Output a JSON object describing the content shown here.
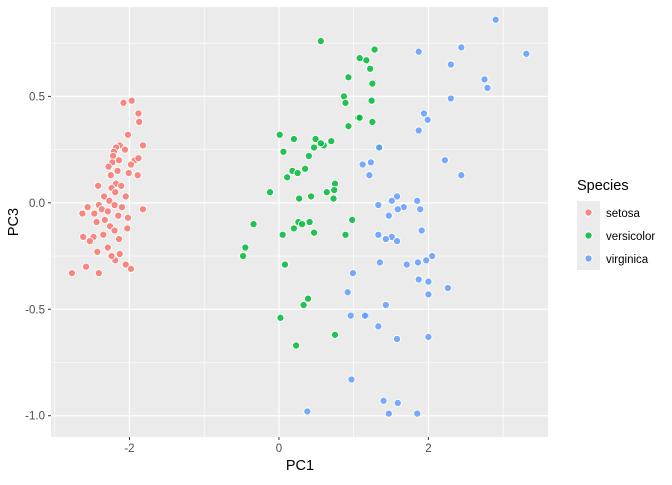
{
  "chart_data": {
    "type": "scatter",
    "title": "",
    "xlabel": "PC1",
    "ylabel": "PC3",
    "xlim": [
      -3.05,
      3.6
    ],
    "ylim": [
      -1.1,
      0.92
    ],
    "x_ticks": [
      -2,
      0,
      2
    ],
    "x_tick_labels": [
      "-2",
      "0",
      "2"
    ],
    "y_ticks": [
      -1.0,
      -0.5,
      0.0,
      0.5
    ],
    "y_tick_labels": [
      "-1.0",
      "-0.5",
      "0.0",
      "0.5"
    ],
    "grid": true,
    "legend": {
      "title": "Species",
      "position": "right"
    },
    "series": [
      {
        "name": "setosa",
        "color": "#F8766D",
        "points": [
          [
            -2.08,
            0.47
          ],
          [
            -1.97,
            0.48
          ],
          [
            -1.88,
            0.42
          ],
          [
            -1.87,
            0.38
          ],
          [
            -2.02,
            0.32
          ],
          [
            -1.82,
            0.27
          ],
          [
            -2.13,
            0.27
          ],
          [
            -2.18,
            0.26
          ],
          [
            -2.06,
            0.25
          ],
          [
            -2.21,
            0.24
          ],
          [
            -1.93,
            0.2
          ],
          [
            -2.22,
            0.22
          ],
          [
            -2.14,
            0.2
          ],
          [
            -1.88,
            0.21
          ],
          [
            -2.23,
            0.19
          ],
          [
            -1.98,
            0.18
          ],
          [
            -2.28,
            0.17
          ],
          [
            -2.16,
            0.15
          ],
          [
            -2.01,
            0.14
          ],
          [
            -2.25,
            0.13
          ],
          [
            -1.89,
            0.13
          ],
          [
            -2.18,
            0.09
          ],
          [
            -2.11,
            0.08
          ],
          [
            -2.24,
            0.07
          ],
          [
            -2.42,
            0.08
          ],
          [
            -2.19,
            0.05
          ],
          [
            -2.05,
            0.03
          ],
          [
            -2.34,
            0.03
          ],
          [
            -2.27,
            0.01
          ],
          [
            -2.41,
            -0.01
          ],
          [
            -2.2,
            -0.01
          ],
          [
            -2.56,
            -0.02
          ],
          [
            -2.1,
            -0.02
          ],
          [
            -1.82,
            -0.03
          ],
          [
            -2.37,
            -0.03
          ],
          [
            -2.29,
            -0.04
          ],
          [
            -2.63,
            -0.05
          ],
          [
            -2.47,
            -0.05
          ],
          [
            -2.15,
            -0.06
          ],
          [
            -2.02,
            -0.07
          ],
          [
            -2.33,
            -0.08
          ],
          [
            -2.44,
            -0.09
          ],
          [
            -2.26,
            -0.11
          ],
          [
            -2.03,
            -0.12
          ],
          [
            -2.2,
            -0.13
          ],
          [
            -2.35,
            -0.15
          ],
          [
            -2.48,
            -0.16
          ],
          [
            -2.62,
            -0.16
          ],
          [
            -2.14,
            -0.17
          ],
          [
            -2.53,
            -0.18
          ],
          [
            -2.29,
            -0.21
          ],
          [
            -2.43,
            -0.23
          ],
          [
            -2.13,
            -0.24
          ],
          [
            -2.19,
            -0.27
          ],
          [
            -2.05,
            -0.29
          ],
          [
            -2.58,
            -0.3
          ],
          [
            -1.98,
            -0.31
          ],
          [
            -2.77,
            -0.33
          ],
          [
            -2.41,
            -0.33
          ],
          [
            -2.24,
            -0.25
          ]
        ]
      },
      {
        "name": "versicolor",
        "color": "#00BA38",
        "points": [
          [
            0.56,
            0.76
          ],
          [
            1.28,
            0.72
          ],
          [
            1.08,
            0.68
          ],
          [
            1.17,
            0.67
          ],
          [
            1.22,
            0.63
          ],
          [
            0.93,
            0.59
          ],
          [
            1.25,
            0.56
          ],
          [
            0.87,
            0.5
          ],
          [
            0.89,
            0.47
          ],
          [
            1.24,
            0.48
          ],
          [
            1.06,
            0.4
          ],
          [
            1.08,
            0.4
          ],
          [
            1.25,
            0.38
          ],
          [
            0.93,
            0.36
          ],
          [
            0.01,
            0.32
          ],
          [
            0.2,
            0.3
          ],
          [
            0.49,
            0.3
          ],
          [
            0.7,
            0.29
          ],
          [
            0.6,
            0.27
          ],
          [
            0.56,
            0.28
          ],
          [
            1.35,
            0.26
          ],
          [
            0.47,
            0.26
          ],
          [
            0.06,
            0.24
          ],
          [
            0.4,
            0.22
          ],
          [
            0.35,
            0.16
          ],
          [
            0.18,
            0.15
          ],
          [
            0.25,
            0.14
          ],
          [
            0.11,
            0.12
          ],
          [
            0.75,
            0.09
          ],
          [
            0.74,
            0.06
          ],
          [
            0.64,
            0.05
          ],
          [
            -0.12,
            0.05
          ],
          [
            0.43,
            0.03
          ],
          [
            0.27,
            0.02
          ],
          [
            0.73,
            0.02
          ],
          [
            0.41,
            -0.09
          ],
          [
            0.26,
            -0.09
          ],
          [
            0.31,
            -0.1
          ],
          [
            0.98,
            -0.08
          ],
          [
            -0.34,
            -0.1
          ],
          [
            0.2,
            -0.12
          ],
          [
            0.47,
            -0.14
          ],
          [
            0.05,
            -0.15
          ],
          [
            0.89,
            -0.15
          ],
          [
            -0.45,
            -0.21
          ],
          [
            -0.48,
            -0.25
          ],
          [
            0.08,
            -0.29
          ],
          [
            0.39,
            -0.45
          ],
          [
            0.33,
            -0.48
          ],
          [
            0.02,
            -0.54
          ],
          [
            0.23,
            -0.67
          ],
          [
            0.75,
            -0.62
          ]
        ]
      },
      {
        "name": "virginica",
        "color": "#619CFF",
        "points": [
          [
            2.9,
            0.86
          ],
          [
            2.44,
            0.73
          ],
          [
            1.87,
            0.71
          ],
          [
            3.31,
            0.7
          ],
          [
            2.3,
            0.65
          ],
          [
            2.75,
            0.58
          ],
          [
            2.79,
            0.54
          ],
          [
            2.3,
            0.49
          ],
          [
            1.94,
            0.42
          ],
          [
            1.99,
            0.39
          ],
          [
            1.87,
            0.34
          ],
          [
            1.34,
            0.26
          ],
          [
            2.22,
            0.2
          ],
          [
            1.23,
            0.19
          ],
          [
            1.12,
            0.18
          ],
          [
            2.44,
            0.13
          ],
          [
            1.21,
            0.13
          ],
          [
            1.58,
            0.03
          ],
          [
            1.51,
            0.01
          ],
          [
            1.85,
            0.01
          ],
          [
            1.33,
            -0.01
          ],
          [
            1.67,
            -0.02
          ],
          [
            1.59,
            -0.03
          ],
          [
            1.89,
            -0.03
          ],
          [
            1.47,
            -0.06
          ],
          [
            1.91,
            -0.13
          ],
          [
            1.33,
            -0.15
          ],
          [
            1.51,
            -0.16
          ],
          [
            1.43,
            -0.17
          ],
          [
            1.58,
            -0.18
          ],
          [
            2.05,
            -0.25
          ],
          [
            1.97,
            -0.27
          ],
          [
            1.86,
            -0.28
          ],
          [
            1.35,
            -0.28
          ],
          [
            1.71,
            -0.29
          ],
          [
            0.99,
            -0.33
          ],
          [
            1.87,
            -0.36
          ],
          [
            2.0,
            -0.37
          ],
          [
            2.26,
            -0.4
          ],
          [
            0.92,
            -0.42
          ],
          [
            2.0,
            -0.43
          ],
          [
            1.43,
            -0.48
          ],
          [
            1.17,
            -0.53
          ],
          [
            1.15,
            -0.53
          ],
          [
            0.96,
            -0.53
          ],
          [
            1.33,
            -0.58
          ],
          [
            1.58,
            -0.64
          ],
          [
            2.0,
            -0.63
          ],
          [
            0.97,
            -0.83
          ],
          [
            0.38,
            -0.98
          ],
          [
            1.4,
            -0.93
          ],
          [
            1.59,
            -0.94
          ],
          [
            1.85,
            -0.99
          ],
          [
            1.47,
            -0.99
          ]
        ]
      }
    ]
  }
}
